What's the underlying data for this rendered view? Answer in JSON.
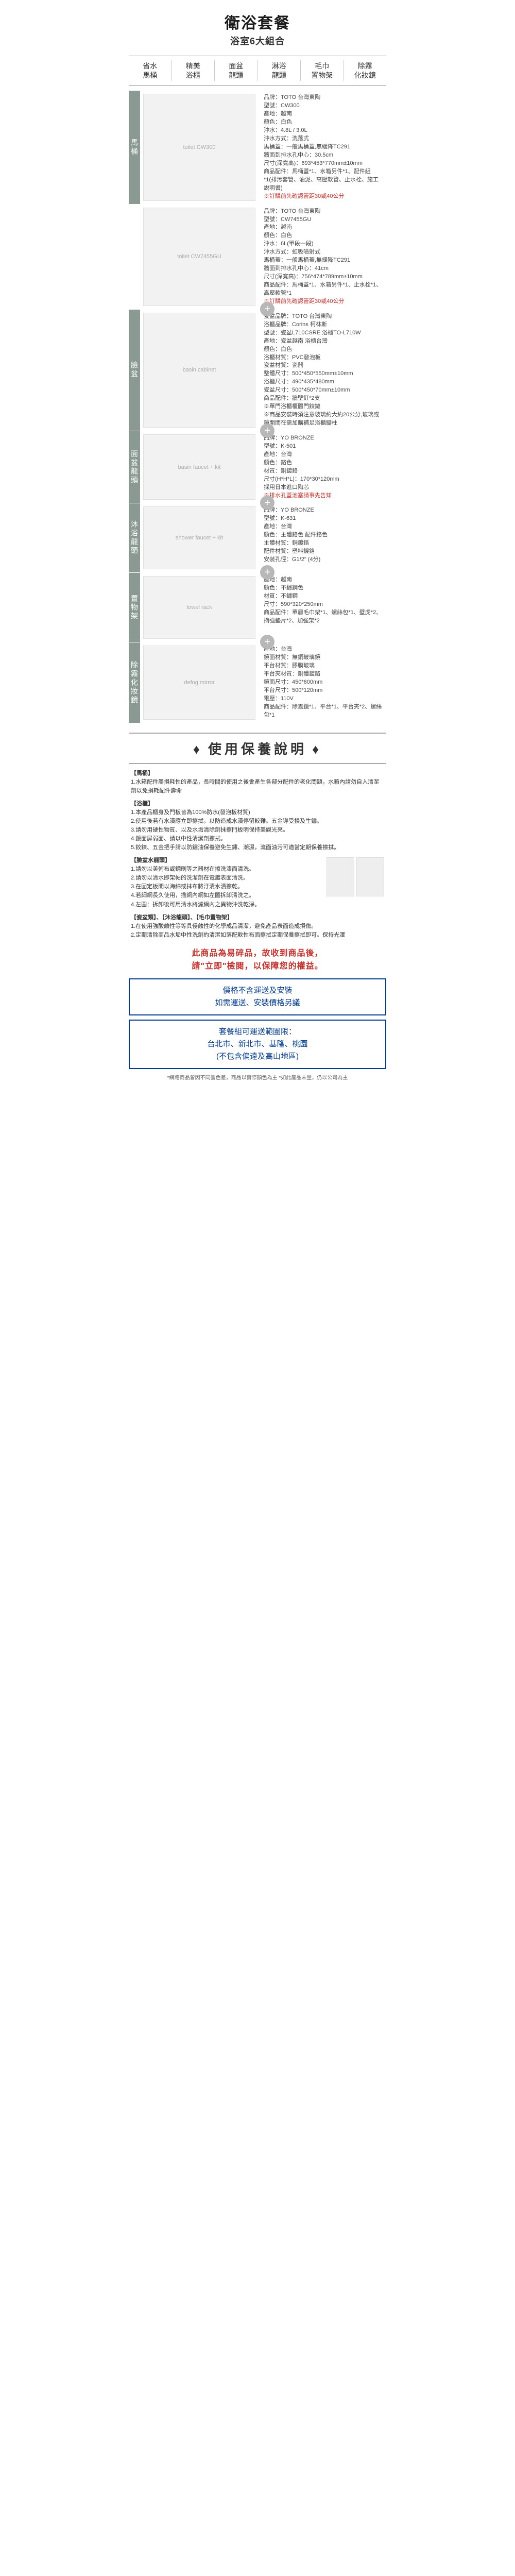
{
  "header": {
    "title": "衛浴套餐",
    "subtitle": "浴室6大組合"
  },
  "features": [
    {
      "l1": "省水",
      "l2": "馬桶"
    },
    {
      "l1": "精美",
      "l2": "浴櫃"
    },
    {
      "l1": "面盆",
      "l2": "龍頭"
    },
    {
      "l1": "淋浴",
      "l2": "龍頭"
    },
    {
      "l1": "毛巾",
      "l2": "置物架"
    },
    {
      "l1": "除霧",
      "l2": "化妝鏡"
    }
  ],
  "items": [
    {
      "vlabel": "馬桶",
      "img_hint": "toilet CW300",
      "specs": [
        "品牌：TOTO 台灣東陶",
        "型號：CW300",
        "產地：越南",
        "顏色：白色",
        "沖水：4.8L / 3.0L",
        "沖水方式：洗落式",
        "馬桶蓋：一般馬桶蓋,無緩降TC291",
        "牆面到排水孔中心：30.5cm",
        "尺寸(深寬高)：693*453*770mm±10mm",
        "商品配件：馬桶蓋*1、水箱另件*1、配件組*1(排污套管、油泥、高壓軟管、止水栓、施工說明書)",
        "",
        "※訂購前先確認管距30或40公分"
      ],
      "warn_indexes": [
        11
      ]
    },
    {
      "vlabel": "",
      "img_hint": "toilet CW7455GU",
      "specs": [
        "品牌：TOTO 台灣東陶",
        "型號：CW7455GU",
        "產地：越南",
        "顏色：白色",
        "沖水：6L(單段一段)",
        "沖水方式：虹吸噴射式",
        "馬桶蓋：一般馬桶蓋,無緩降TC291",
        "牆面到排水孔中心：41cm",
        "尺寸(深寬高)：756*474*789mm±10mm",
        "商品配件：馬桶蓋*1、水箱另件*1、止水栓*1、高壓軟管*1",
        "",
        "※訂購前先確認管距30或40公分"
      ],
      "warn_indexes": [
        11
      ]
    },
    {
      "vlabel": "臉盆",
      "img_hint": "basin cabinet",
      "specs": [
        "瓷盆品牌：TOTO 台灣東陶",
        "浴櫃品牌：Corins 柯林斯",
        "型號：瓷盆L710CSRE 浴櫃TO-L710W",
        "產地：瓷盆越南 浴櫃台灣",
        "顏色：白色",
        "浴櫃材質：PVC發泡板",
        "瓷盆材質：瓷器",
        "整體尺寸：500*450*550mm±10mm",
        "浴櫃尺寸：490*435*480mm",
        "瓷盆尺寸：500*450*70mm±10mm",
        "商品配件：牆壁釘*2支",
        "※單門浴櫃櫃體門鉸鏈",
        "※商品安裝時須注意玻璃約大約20公分,玻璃或鏡開間在需加購補足浴櫃腳柱"
      ],
      "warn_indexes": []
    },
    {
      "vlabel": "面盆龍頭",
      "img_hint": "basin faucet + kit",
      "specs": [
        "品牌：YO BRONZE",
        "型號：K-501",
        "產地：台灣",
        "顏色：鉻色",
        "材質：銅鍍鉻",
        "尺寸(H*H*L)：170*30*120mm",
        "採用日本進口陶芯",
        "※排水孔蓋池塞請事先告知"
      ],
      "warn_indexes": [
        7
      ]
    },
    {
      "vlabel": "沐浴龍頭",
      "img_hint": "shower faucet + kit",
      "specs": [
        "品牌：YO BRONZE",
        "型號：K-631",
        "產地：台灣",
        "顏色：主體鉻色 配件鉻色",
        "主體材質：銅鍍鉻",
        "配件材質：塑料鍍鉻",
        "安裝孔徑：G1/2\" (4分)"
      ],
      "warn_indexes": []
    },
    {
      "vlabel": "置物架",
      "img_hint": "towel rack",
      "specs": [
        "產地：越南",
        "顏色：不鏽鋼色",
        "材質：不鏽鋼",
        "尺寸：590*320*250mm",
        "",
        "商品配件：單層毛巾架*1、螺絲包*1、壁虎*2、摘強墊片*2、加強架*2"
      ],
      "warn_indexes": []
    },
    {
      "vlabel": "除霧化妝鏡",
      "img_hint": "defog mirror",
      "specs": [
        "產地：台灣",
        "鏡面材質：無銅玻璃鏡",
        "平台材質：膠膜玻璃",
        "平台夾材質：銅體鍍鉻",
        "鏡面尺寸：450*600mm",
        "平台尺寸：500*120mm",
        "電壓：110V",
        "",
        "商品配件：除霧鏡*1、平台*1、平台夾*2、螺絲包*1"
      ],
      "warn_indexes": []
    }
  ],
  "care": {
    "title": "使用保養說明",
    "sections": [
      {
        "t": "【馬桶】",
        "lines": [
          "1.水箱配件屬損耗性的產品，長時間的使用之後會產生各部分配件的老化問題，水箱內請勿自入清潔劑以免損耗配件壽命"
        ]
      },
      {
        "t": "【浴櫃】",
        "lines": [
          "1.本產品櫃身及門板皆為100%防水(發泡板材質)",
          "2.使用後若有水漬應立即擦拭，以防造成水漬停留較難。五金導受損及生鏽。",
          "3.請勿用硬性物質、以及水垢清除劑抹擦門板明保持美觀光亮。",
          "4.鏡面屏弱面、請以中性清潔劑擦拭。",
          "5.鉸鍊、五金把手請以防鏽油保養避免生鏽、潮濕，流面油污可適當定期保養擦拭。"
        ]
      },
      {
        "t": "【臉盆水龍頭】",
        "lines": [
          "1.請勿以美術布或鋼刷等之器材在擦洗漆面清洗。",
          "2.請勿以清水即架帖的洗潔劑在電鍍表面清洗。",
          "3.在固定板間以海綿或抹布將汙漬水漬擦乾。",
          "4.若細網長久使用，擔網內網如左圖拆卸清洗之。",
          "4.左圖：拆卸後可用清水將濾網內之異物沖洗乾淨。"
        ],
        "has_imgs": true
      },
      {
        "t": "【瓷盆類】、【沐浴龍頭】、【毛巾置物架】",
        "lines": [
          "1.在使用強酸鹼性等等具侵蝕性的化學成品清潔，避免產品表面造成損傷。",
          "2.定期清除商品水垢中性洗劑約清潔如落配軟性布面擦拭定期保養擦拭即可。保持光澤"
        ]
      }
    ]
  },
  "fragile": {
    "l1": "此商品為易碎品，故收到商品後，",
    "l2": "請\"立即\"檢閱，以保障您的權益。"
  },
  "box1": {
    "l1": "價格不含運送及安裝",
    "l2": "如需運送、安裝價格另議"
  },
  "box2": {
    "l1": "套餐組可運送範圍限：",
    "l2": "台北市、新北市、基隆、桃園",
    "l3": "(不包含偏遠及高山地區)"
  },
  "footnote": "*網路商品皆因不同螢色差，商品以實際顏色為主 *如此產品未量，仍以公司為主",
  "colors": {
    "vlabel_bg": "#8a9a92",
    "plus_bg": "#b8b8b8",
    "warn": "#c7302a",
    "box_border": "#003a8f"
  }
}
